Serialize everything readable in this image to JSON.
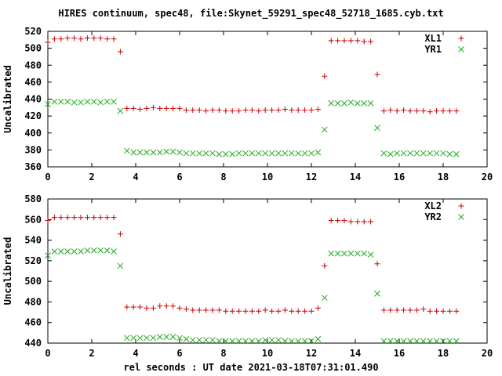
{
  "title": "HIRES continuum, spec48, file:Skynet_59291_spec48_52718_1685.cyb.txt",
  "xlabel": "rel seconds : UT date 2021-03-18T07:31:01.490",
  "colors": {
    "red": "#cc0000",
    "green": "#22aa22",
    "axis": "#000000"
  },
  "chart_data": [
    {
      "type": "scatter",
      "xlabel": "",
      "ylabel": "Uncalibrated",
      "xlim": [
        0,
        20
      ],
      "ylim": [
        360,
        520
      ],
      "xticks": [
        0,
        2,
        4,
        6,
        8,
        10,
        12,
        14,
        16,
        18,
        20
      ],
      "yticks": [
        360,
        380,
        400,
        420,
        440,
        460,
        480,
        500,
        520
      ],
      "legend_position": "top-right",
      "series": [
        {
          "name": "XL1",
          "marker": "plus",
          "color": "#cc0000",
          "x": [
            0.0,
            0.3,
            0.6,
            0.9,
            1.2,
            1.5,
            1.8,
            2.1,
            2.4,
            2.7,
            3.0,
            3.3,
            3.6,
            3.9,
            4.2,
            4.5,
            4.8,
            5.1,
            5.4,
            5.7,
            6.0,
            6.3,
            6.6,
            6.9,
            7.2,
            7.5,
            7.8,
            8.1,
            8.4,
            8.7,
            9.0,
            9.3,
            9.6,
            9.9,
            10.2,
            10.5,
            10.8,
            11.1,
            11.4,
            11.7,
            12.0,
            12.3,
            12.6,
            12.9,
            13.2,
            13.5,
            13.8,
            14.1,
            14.4,
            14.7,
            15.0,
            15.3,
            15.6,
            15.9,
            16.2,
            16.5,
            16.8,
            17.1,
            17.4,
            17.7,
            18.0,
            18.3,
            18.6
          ],
          "y": [
            507,
            511,
            511,
            512,
            512,
            511,
            512,
            512,
            512,
            511,
            511,
            496,
            429,
            429,
            428,
            429,
            430,
            429,
            429,
            429,
            429,
            427,
            427,
            427,
            426,
            427,
            427,
            426,
            426,
            426,
            427,
            427,
            426,
            427,
            427,
            427,
            428,
            427,
            427,
            427,
            427,
            428,
            467,
            509,
            509,
            509,
            509,
            509,
            508,
            508,
            469,
            426,
            427,
            426,
            427,
            426,
            426,
            426,
            425,
            426,
            426,
            426,
            426
          ]
        },
        {
          "name": "YR1",
          "marker": "cross",
          "color": "#22aa22",
          "x": [
            0.0,
            0.3,
            0.6,
            0.9,
            1.2,
            1.5,
            1.8,
            2.1,
            2.4,
            2.7,
            3.0,
            3.3,
            3.6,
            3.9,
            4.2,
            4.5,
            4.8,
            5.1,
            5.4,
            5.7,
            6.0,
            6.3,
            6.6,
            6.9,
            7.2,
            7.5,
            7.8,
            8.1,
            8.4,
            8.7,
            9.0,
            9.3,
            9.6,
            9.9,
            10.2,
            10.5,
            10.8,
            11.1,
            11.4,
            11.7,
            12.0,
            12.3,
            12.6,
            12.9,
            13.2,
            13.5,
            13.8,
            14.1,
            14.4,
            14.7,
            15.0,
            15.3,
            15.6,
            15.9,
            16.2,
            16.5,
            16.8,
            17.1,
            17.4,
            17.7,
            18.0,
            18.3,
            18.6
          ],
          "y": [
            434,
            437,
            437,
            437,
            436,
            436,
            437,
            437,
            436,
            437,
            437,
            426,
            379,
            377,
            377,
            377,
            377,
            377,
            378,
            378,
            377,
            376,
            376,
            376,
            376,
            376,
            375,
            375,
            375,
            376,
            376,
            376,
            376,
            376,
            376,
            376,
            376,
            376,
            376,
            376,
            376,
            377,
            404,
            435,
            435,
            435,
            436,
            435,
            435,
            435,
            406,
            376,
            375,
            376,
            376,
            376,
            376,
            376,
            376,
            376,
            376,
            375,
            375
          ]
        }
      ]
    },
    {
      "type": "scatter",
      "xlabel": "rel seconds : UT date 2021-03-18T07:31:01.490",
      "ylabel": "Uncalibrated",
      "xlim": [
        0,
        20
      ],
      "ylim": [
        440,
        580
      ],
      "xticks": [
        0,
        2,
        4,
        6,
        8,
        10,
        12,
        14,
        16,
        18,
        20
      ],
      "yticks": [
        440,
        460,
        480,
        500,
        520,
        540,
        560,
        580
      ],
      "legend_position": "top-right",
      "series": [
        {
          "name": "XL2",
          "marker": "plus",
          "color": "#cc0000",
          "x": [
            0.0,
            0.3,
            0.6,
            0.9,
            1.2,
            1.5,
            1.8,
            2.1,
            2.4,
            2.7,
            3.0,
            3.3,
            3.6,
            3.9,
            4.2,
            4.5,
            4.8,
            5.1,
            5.4,
            5.7,
            6.0,
            6.3,
            6.6,
            6.9,
            7.2,
            7.5,
            7.8,
            8.1,
            8.4,
            8.7,
            9.0,
            9.3,
            9.6,
            9.9,
            10.2,
            10.5,
            10.8,
            11.1,
            11.4,
            11.7,
            12.0,
            12.3,
            12.6,
            12.9,
            13.2,
            13.5,
            13.8,
            14.1,
            14.4,
            14.7,
            15.0,
            15.3,
            15.6,
            15.9,
            16.2,
            16.5,
            16.8,
            17.1,
            17.4,
            17.7,
            18.0,
            18.3,
            18.6
          ],
          "y": [
            559,
            562,
            562,
            562,
            562,
            562,
            562,
            562,
            562,
            562,
            562,
            546,
            475,
            475,
            475,
            474,
            474,
            476,
            476,
            476,
            474,
            473,
            472,
            472,
            472,
            472,
            472,
            471,
            471,
            471,
            471,
            471,
            471,
            472,
            471,
            471,
            472,
            471,
            471,
            471,
            471,
            474,
            515,
            559,
            559,
            559,
            558,
            558,
            558,
            558,
            517,
            472,
            472,
            472,
            472,
            472,
            472,
            473,
            471,
            471,
            471,
            471,
            471
          ]
        },
        {
          "name": "YR2",
          "marker": "cross",
          "color": "#22aa22",
          "x": [
            0.0,
            0.3,
            0.6,
            0.9,
            1.2,
            1.5,
            1.8,
            2.1,
            2.4,
            2.7,
            3.0,
            3.3,
            3.6,
            3.9,
            4.2,
            4.5,
            4.8,
            5.1,
            5.4,
            5.7,
            6.0,
            6.3,
            6.6,
            6.9,
            7.2,
            7.5,
            7.8,
            8.1,
            8.4,
            8.7,
            9.0,
            9.3,
            9.6,
            9.9,
            10.2,
            10.5,
            10.8,
            11.1,
            11.4,
            11.7,
            12.0,
            12.3,
            12.6,
            12.9,
            13.2,
            13.5,
            13.8,
            14.1,
            14.4,
            14.7,
            15.0,
            15.3,
            15.6,
            15.9,
            16.2,
            16.5,
            16.8,
            17.1,
            17.4,
            17.7,
            18.0,
            18.3,
            18.6
          ],
          "y": [
            525,
            529,
            529,
            529,
            529,
            529,
            530,
            530,
            530,
            530,
            529,
            515,
            445,
            445,
            445,
            445,
            445,
            446,
            446,
            446,
            445,
            444,
            443,
            443,
            443,
            443,
            442,
            442,
            442,
            442,
            442,
            442,
            442,
            443,
            443,
            443,
            442,
            442,
            442,
            442,
            442,
            444,
            484,
            527,
            527,
            527,
            527,
            527,
            527,
            526,
            488,
            442,
            442,
            442,
            442,
            442,
            442,
            442,
            442,
            442,
            442,
            442,
            442
          ]
        }
      ]
    }
  ]
}
